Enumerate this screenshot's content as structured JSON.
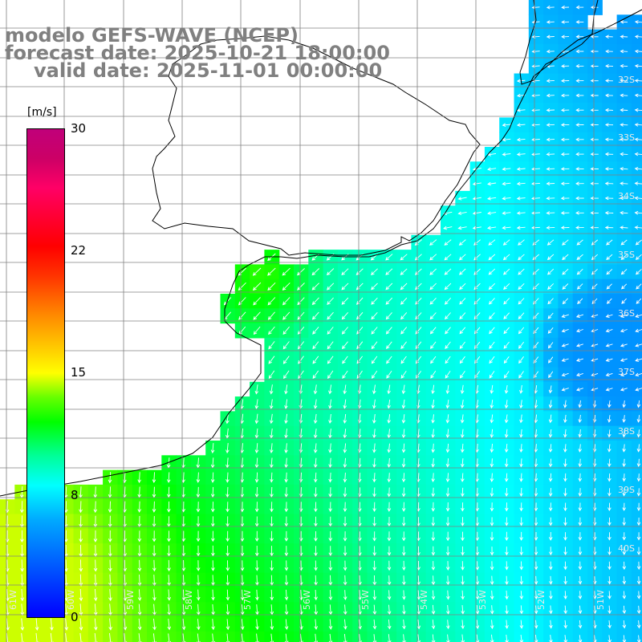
{
  "title": {
    "line1": "modelo GEFS-WAVE (NCEP)",
    "line2": "forecast date: 2025-10-21 18:00:00",
    "line3": "valid date: 2025-11-01 00:00:00"
  },
  "colorbar": {
    "unit": "[m/s]",
    "labels": [
      "30",
      "22",
      "15",
      "8",
      "0"
    ],
    "colors": [
      "#0000ff",
      "#00aaff",
      "#00ffff",
      "#00ff00",
      "#ffff00",
      "#ff8800",
      "#ff0000",
      "#c0007a"
    ]
  },
  "map": {
    "lat_labels": [
      "32S",
      "33S",
      "34S",
      "35S",
      "36S",
      "37S",
      "38S",
      "39S",
      "40S"
    ],
    "lon_labels": [
      "61W",
      "60W",
      "59W",
      "58W",
      "57W",
      "56W",
      "55W",
      "54W",
      "53W",
      "52W",
      "51W"
    ],
    "land_color": "#ffffff",
    "grid_color": "#808080",
    "arrow_color": "#ffffff"
  }
}
